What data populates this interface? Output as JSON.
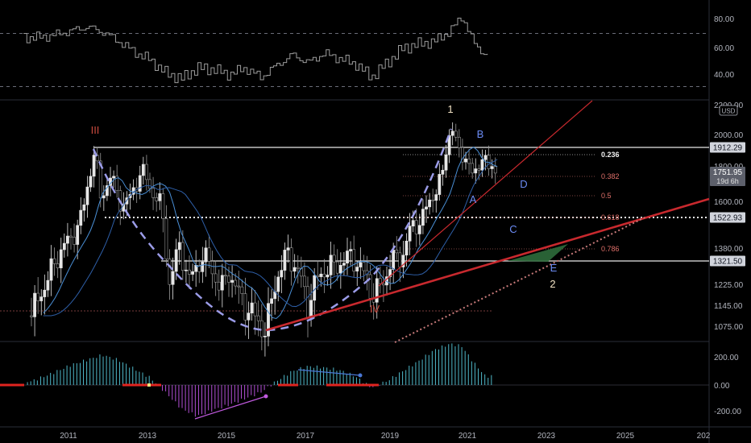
{
  "app": {
    "currency_badge": "USD"
  },
  "colors": {
    "bg": "#000000",
    "up": "#e6e6e6",
    "down": "#9a9a9a",
    "ma_fast": "#4a8fd6",
    "ma_slow": "#2e5fa8",
    "trend_red": "#c8292e",
    "dashed_curve": "#9b9ce8",
    "ao_pos": "#4fb8c9",
    "ao_neg": "#b34fd6",
    "wave_red": "#c94a3e",
    "wave_blue": "#6c8cf5",
    "wave_white": "#f2e2c4",
    "fib_red": "#e0706a"
  },
  "chart_data": [
    {
      "type": "line",
      "name": "rsi-pane",
      "y_ticks": [
        "80.00",
        "60.00",
        "40.00"
      ],
      "levels": [
        70,
        30
      ],
      "x": [
        2010.2,
        2010.6,
        2011.0,
        2011.4,
        2011.8,
        2012.2,
        2012.6,
        2013.0,
        2013.4,
        2013.8,
        2014.2,
        2014.6,
        2015.0,
        2015.4,
        2015.8,
        2016.2,
        2016.6,
        2017.0,
        2017.4,
        2017.8,
        2018.2,
        2018.6,
        2019.0,
        2019.4,
        2019.8,
        2020.2,
        2020.6,
        2020.9,
        2021.2,
        2021.5
      ],
      "values": [
        67,
        69,
        72,
        75,
        71,
        64,
        56,
        50,
        40,
        36,
        44,
        43,
        39,
        44,
        37,
        46,
        54,
        48,
        55,
        51,
        47,
        37,
        48,
        59,
        62,
        64,
        72,
        83,
        62,
        54
      ]
    },
    {
      "type": "candlestick",
      "name": "price-pane",
      "currency": "USD",
      "x_ticks": [
        "2011",
        "2013",
        "2015",
        "2017",
        "2019",
        "2021",
        "2023",
        "2025",
        "202"
      ],
      "y_ticks": [
        "2200.00",
        "2000.00",
        "1800.00",
        "1600.00",
        "1380.00",
        "1225.00",
        "1145.00",
        "1075.00"
      ],
      "price_labels": [
        {
          "text": "1912.29",
          "kind": "line"
        },
        {
          "text": "1751.95",
          "kind": "current",
          "countdown": "19d 6h"
        },
        {
          "text": "1522.93",
          "kind": "dotted"
        },
        {
          "text": "1321.50",
          "kind": "line"
        }
      ],
      "fib_labels": [
        "0.236",
        "0.382",
        "0.5",
        "0.618",
        "0.786"
      ],
      "wave_labels": [
        "III",
        "IV",
        "1",
        "2",
        "A",
        "B",
        "C",
        "D",
        "E"
      ],
      "ohlc_path": [
        [
          2010.0,
          1110
        ],
        [
          2010.4,
          1245
        ],
        [
          2010.8,
          1390
        ],
        [
          2011.0,
          1420
        ],
        [
          2011.3,
          1540
        ],
        [
          2011.6,
          1900
        ],
        [
          2011.75,
          1620
        ],
        [
          2012.0,
          1740
        ],
        [
          2012.3,
          1580
        ],
        [
          2012.5,
          1620
        ],
        [
          2012.8,
          1780
        ],
        [
          2013.0,
          1680
        ],
        [
          2013.3,
          1570
        ],
        [
          2013.5,
          1230
        ],
        [
          2013.75,
          1390
        ],
        [
          2014.0,
          1240
        ],
        [
          2014.3,
          1340
        ],
        [
          2014.5,
          1320
        ],
        [
          2014.8,
          1200
        ],
        [
          2015.0,
          1280
        ],
        [
          2015.2,
          1200
        ],
        [
          2015.5,
          1130
        ],
        [
          2015.8,
          1080
        ],
        [
          2015.95,
          1060
        ],
        [
          2016.2,
          1250
        ],
        [
          2016.5,
          1360
        ],
        [
          2016.8,
          1260
        ],
        [
          2017.0,
          1150
        ],
        [
          2017.3,
          1270
        ],
        [
          2017.6,
          1300
        ],
        [
          2017.9,
          1320
        ],
        [
          2018.1,
          1350
        ],
        [
          2018.5,
          1250
        ],
        [
          2018.65,
          1180
        ],
        [
          2018.9,
          1230
        ],
        [
          2019.1,
          1320
        ],
        [
          2019.4,
          1350
        ],
        [
          2019.6,
          1470
        ],
        [
          2019.9,
          1520
        ],
        [
          2020.2,
          1650
        ],
        [
          2020.4,
          1730
        ],
        [
          2020.55,
          1980
        ],
        [
          2020.65,
          2060
        ],
        [
          2020.8,
          1890
        ],
        [
          2021.0,
          1860
        ],
        [
          2021.2,
          1720
        ],
        [
          2021.35,
          1830
        ],
        [
          2021.45,
          1890
        ],
        [
          2021.55,
          1760
        ],
        [
          2021.7,
          1810
        ],
        [
          2021.8,
          1752
        ]
      ]
    },
    {
      "type": "bar",
      "name": "awesome-oscillator-pane",
      "y_ticks": [
        "200.00",
        "0.00",
        "-200.00"
      ],
      "x": [
        2010.0,
        2010.5,
        2011.0,
        2011.5,
        2011.8,
        2012.2,
        2012.6,
        2013.0,
        2013.4,
        2013.8,
        2014.2,
        2014.6,
        2015.0,
        2015.4,
        2015.8,
        2016.2,
        2016.6,
        2017.0,
        2017.4,
        2017.8,
        2018.2,
        2018.6,
        2019.0,
        2019.4,
        2019.8,
        2020.2,
        2020.6,
        2020.9,
        2021.2,
        2021.5
      ],
      "values": [
        30,
        90,
        160,
        210,
        240,
        200,
        130,
        60,
        -60,
        -190,
        -250,
        -200,
        -160,
        -110,
        -60,
        30,
        110,
        150,
        140,
        120,
        70,
        -20,
        30,
        110,
        190,
        280,
        330,
        310,
        180,
        70
      ]
    }
  ]
}
